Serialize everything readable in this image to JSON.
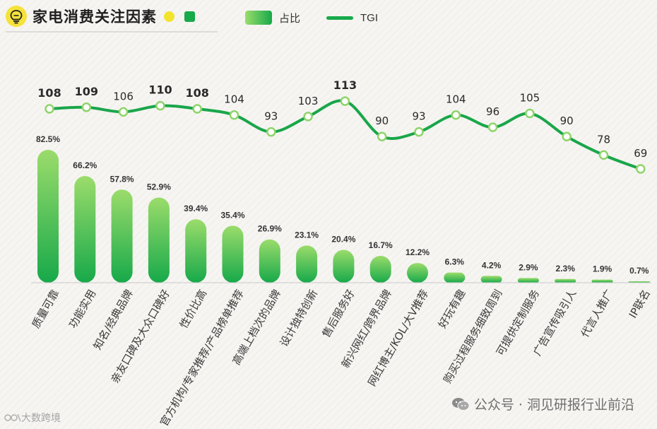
{
  "header": {
    "title": "家电消费关注因素",
    "legend_bar_label": "占比",
    "legend_line_label": "TGI"
  },
  "footer": {
    "left_brand": "大数跨境",
    "right_brand": "公众号 · 洞见研报行业前沿"
  },
  "colors": {
    "bar_light": "#9bdc6b",
    "bar_dark": "#17a94a",
    "line": "#1aa64a",
    "marker_fill": "#ffffff",
    "marker_stroke": "#8fd46a",
    "title_dot": "#f2e32c",
    "logo": "#f5e23a"
  },
  "icons": [
    "lightbulb-logo-icon",
    "wechat-icon",
    "brand-glyph-icon"
  ],
  "chart_data": {
    "type": "bar",
    "categories": [
      "质量可靠",
      "功能实用",
      "知名/经典品牌",
      "亲友口碑及大众口碑好",
      "性价比高",
      "官方机构/专家推荐/产品榜单推荐",
      "高端上档次的品牌",
      "设计独特创新",
      "售后服务好",
      "新兴网红/跨界品牌",
      "网红博主/KOL/大V推荐",
      "好玩有趣",
      "购买过程服务细致周到",
      "可提供定制服务",
      "广告宣传吸引人",
      "代言人推广",
      "IP联名"
    ],
    "series": [
      {
        "name": "占比",
        "type": "bar",
        "values": [
          82.5,
          66.2,
          57.8,
          52.9,
          39.4,
          35.4,
          26.9,
          23.1,
          20.4,
          16.7,
          12.2,
          6.3,
          4.2,
          2.9,
          2.3,
          1.9,
          0.7
        ],
        "labels": [
          "82.5%",
          "66.2%",
          "57.8%",
          "52.9%",
          "39.4%",
          "35.4%",
          "26.9%",
          "23.1%",
          "20.4%",
          "16.7%",
          "12.2%",
          "6.3%",
          "4.2%",
          "2.9%",
          "2.3%",
          "1.9%",
          "0.7%"
        ]
      },
      {
        "name": "TGI",
        "type": "line",
        "values": [
          108,
          109,
          106,
          110,
          108,
          104,
          93,
          103,
          113,
          90,
          93,
          104,
          96,
          105,
          90,
          78,
          69
        ],
        "labels": [
          "108",
          "109",
          "106",
          "110",
          "108",
          "104",
          "93",
          "103",
          "113",
          "90",
          "93",
          "104",
          "96",
          "105",
          "90",
          "78",
          "69"
        ]
      }
    ],
    "bold_tgi_indices": [
      0,
      1,
      3,
      4,
      8
    ],
    "bar_range": [
      0,
      82.5
    ],
    "tgi_range": [
      69,
      113
    ],
    "legend_position": "top",
    "grid": false
  }
}
